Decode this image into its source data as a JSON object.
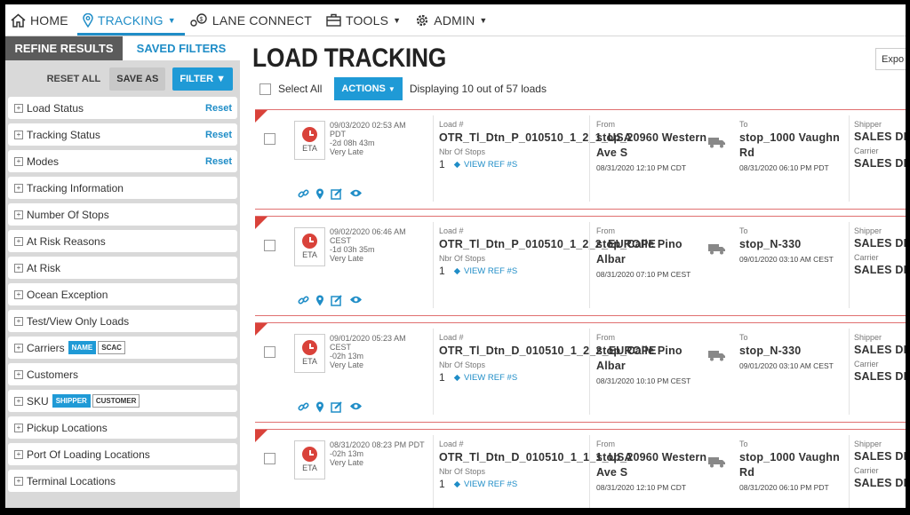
{
  "nav": {
    "home": "HOME",
    "tracking": "TRACKING",
    "lane_connect": "LANE CONNECT",
    "tools": "TOOLS",
    "admin": "ADMIN"
  },
  "sidebar": {
    "tab_refine": "REFINE RESULTS",
    "tab_saved": "SAVED FILTERS",
    "reset_all": "RESET ALL",
    "save_as": "SAVE AS",
    "filter": "FILTER",
    "filters": [
      {
        "label": "Load Status",
        "reset": "Reset"
      },
      {
        "label": "Tracking Status",
        "reset": "Reset"
      },
      {
        "label": "Modes",
        "reset": "Reset"
      },
      {
        "label": "Tracking Information"
      },
      {
        "label": "Number Of Stops"
      },
      {
        "label": "At Risk Reasons"
      },
      {
        "label": "At Risk"
      },
      {
        "label": "Ocean Exception"
      },
      {
        "label": "Test/View Only Loads"
      },
      {
        "label": "Carriers",
        "chips": [
          "NAME",
          "SCAC"
        ]
      },
      {
        "label": "Customers"
      },
      {
        "label": "SKU",
        "chips": [
          "SHIPPER",
          "CUSTOMER"
        ]
      },
      {
        "label": "Pickup Locations"
      },
      {
        "label": "Port Of Loading Locations"
      },
      {
        "label": "Terminal Locations"
      }
    ]
  },
  "main": {
    "title": "LOAD TRACKING",
    "export": "Expo",
    "select_all": "Select All",
    "actions": "ACTIONS",
    "displaying": "Displaying 10 out of 57 loads",
    "eta_label": "ETA",
    "load_label": "Load #",
    "stops_label": "Nbr Of Stops",
    "view_ref": "VIEW REF #S",
    "from_label": "From",
    "to_label": "To",
    "shipper_label": "Shipper",
    "carrier_label": "Carrier"
  },
  "loads": [
    {
      "eta_date": "09/03/2020 02:53 AM",
      "eta_tz": "PDT",
      "eta_diff": "-2d 08h 43m",
      "eta_status": "Very Late",
      "load_no": "OTR_Tl_Dtn_P_010510_1_2_1_USA",
      "stops": "1",
      "from": "stop_20960 Western Ave S",
      "from_date": "08/31/2020 12:10 PM CDT",
      "to": "stop_1000 Vaughn Rd",
      "to_date": "08/31/2020 06:10 PM PDT",
      "shipper": "SALES DE",
      "carrier": "SALES DE"
    },
    {
      "eta_date": "09/02/2020 06:46 AM",
      "eta_tz": "CEST",
      "eta_diff": "-1d 03h 35m",
      "eta_status": "Very Late",
      "load_no": "OTR_Tl_Dtn_P_010510_1_2_2_EUROPE",
      "stops": "1",
      "from": "stop_Calle Pino Albar",
      "from_date": "08/31/2020 07:10 PM CEST",
      "to": "stop_N-330",
      "to_date": "09/01/2020 03:10 AM CEST",
      "shipper": "SALES DE",
      "carrier": "SALES DE"
    },
    {
      "eta_date": "09/01/2020 05:23 AM",
      "eta_tz": "CEST",
      "eta_diff": "-02h 13m",
      "eta_status": "Very Late",
      "load_no": "OTR_Tl_Dtn_D_010510_1_2_2_EUROPE",
      "stops": "1",
      "from": "stop_Calle Pino Albar",
      "from_date": "08/31/2020 10:10 PM CEST",
      "to": "stop_N-330",
      "to_date": "09/01/2020 03:10 AM CEST",
      "shipper": "SALES DE",
      "carrier": "SALES DE"
    },
    {
      "eta_date": "08/31/2020 08:23 PM PDT",
      "eta_tz": "",
      "eta_diff": "-02h 13m",
      "eta_status": "Very Late",
      "load_no": "OTR_Tl_Dtn_D_010510_1_1_1_USA",
      "stops": "1",
      "from": "stop_20960 Western Ave S",
      "from_date": "08/31/2020 12:10 PM CDT",
      "to": "stop_1000 Vaughn Rd",
      "to_date": "08/31/2020 06:10 PM PDT",
      "shipper": "SALES DE",
      "carrier": "SALES DE"
    }
  ],
  "colors": {
    "accent": "#1f9ad6",
    "late_red": "#d9423a",
    "sidebar_bg": "#d9d9d9"
  }
}
